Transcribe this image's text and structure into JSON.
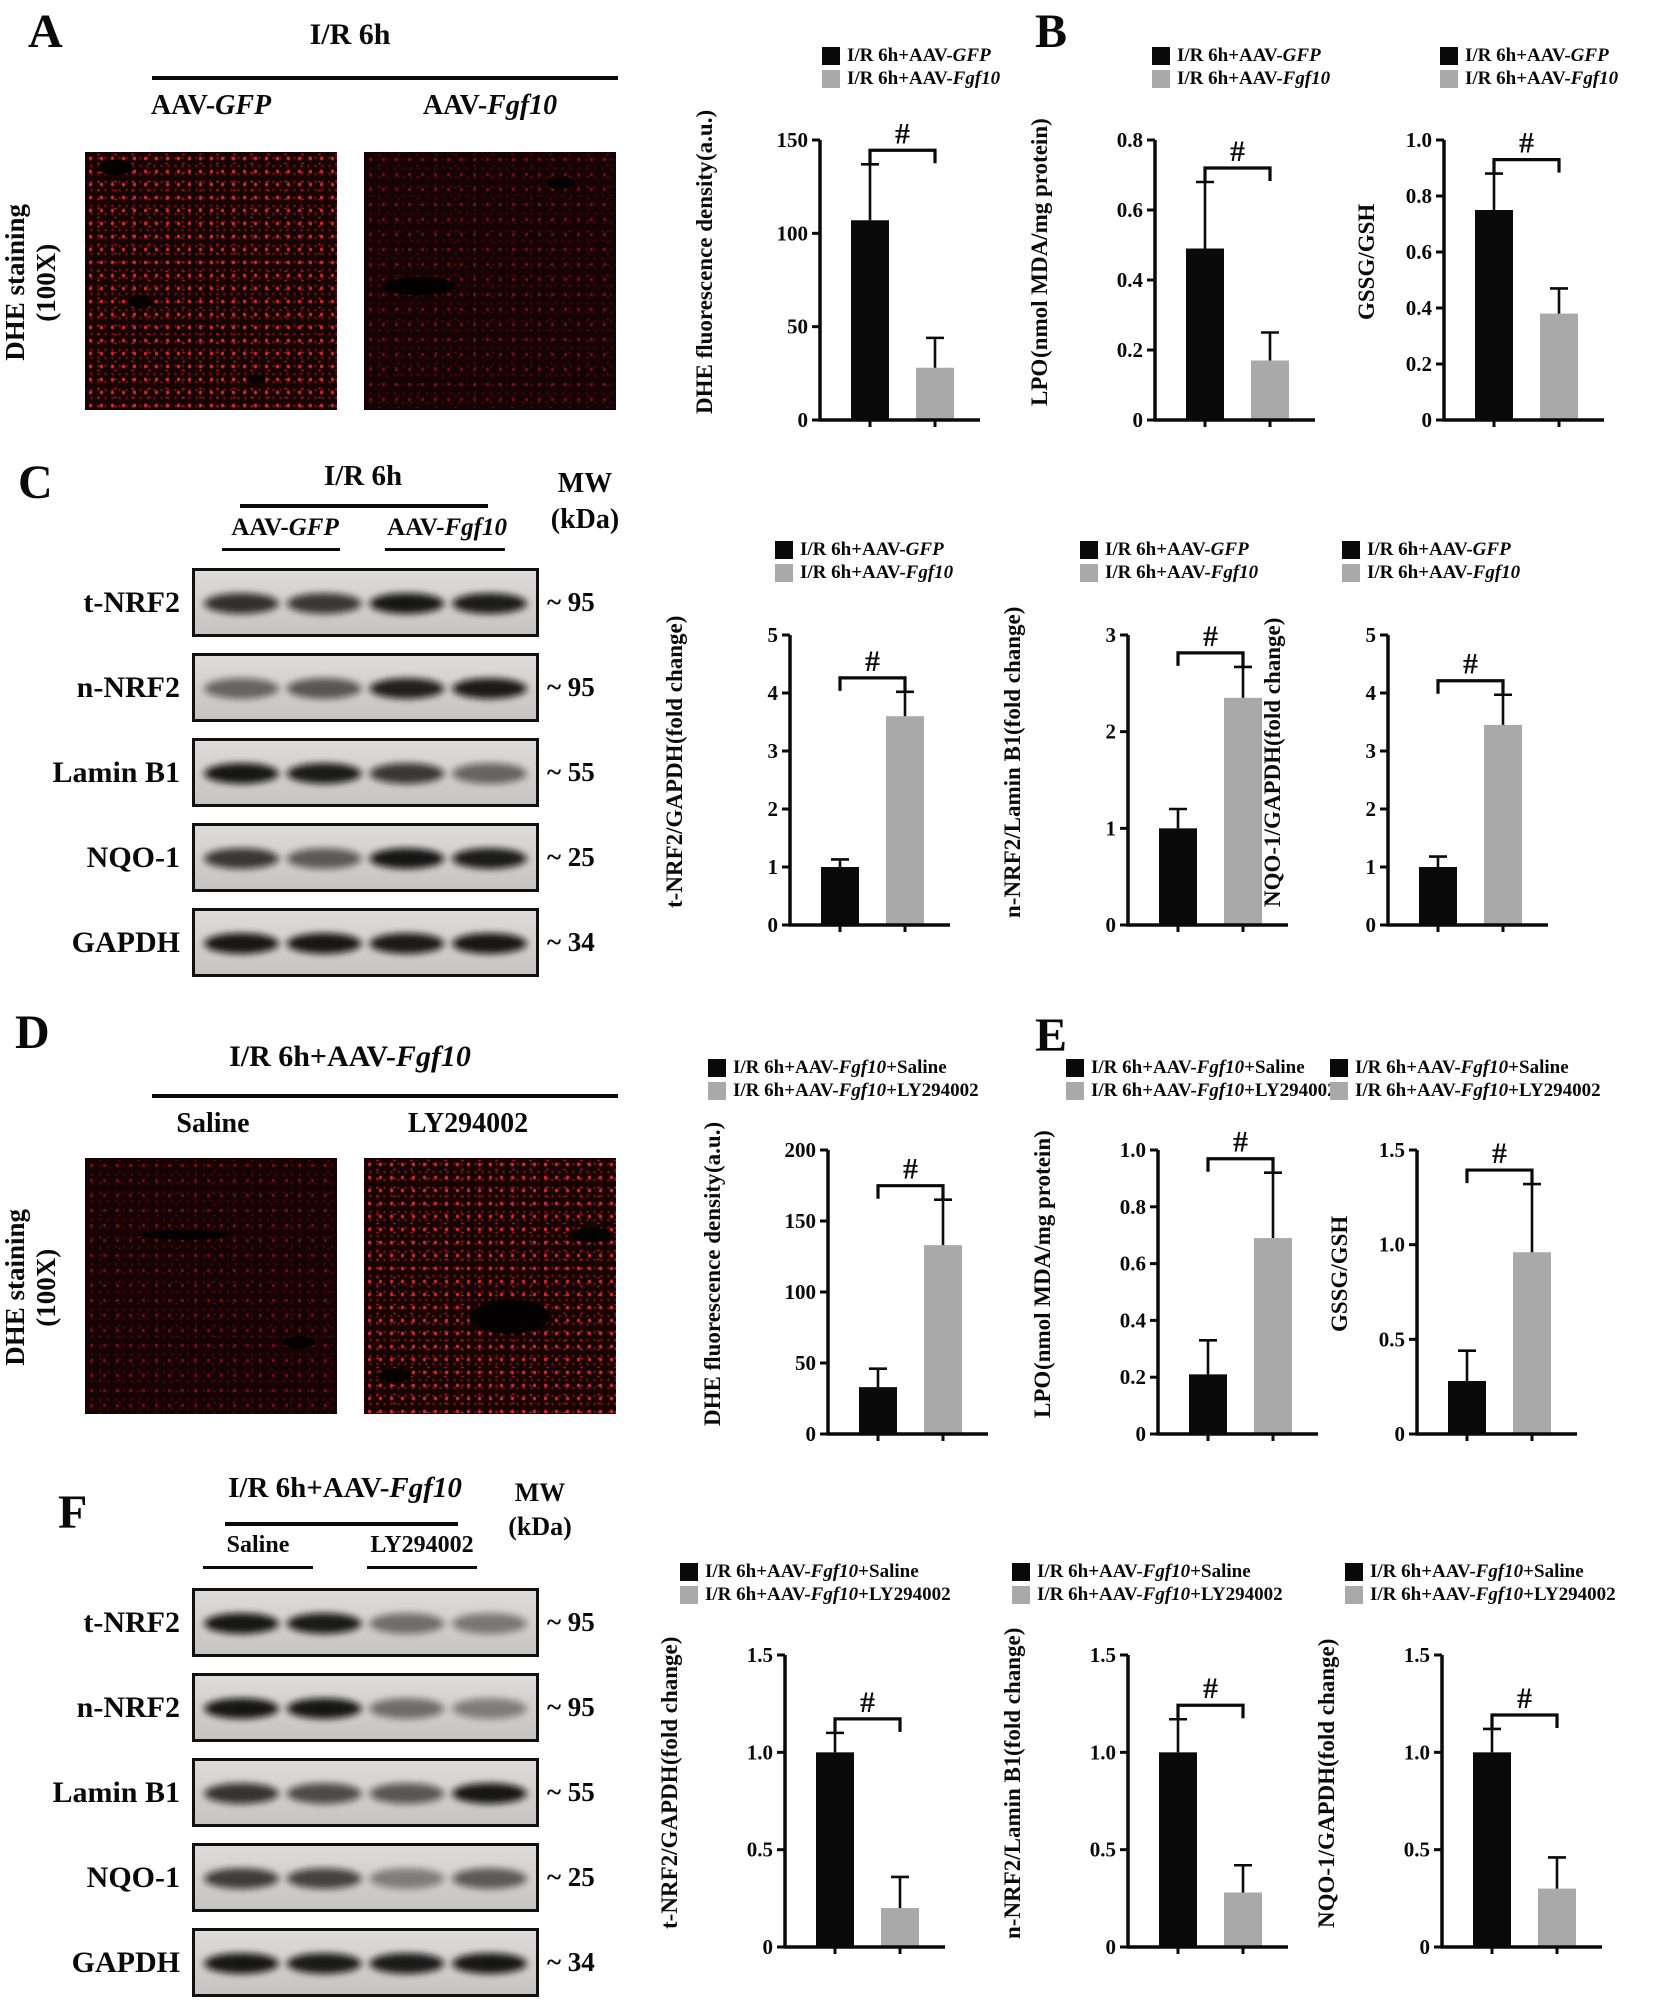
{
  "panel_letters": {
    "A": "A",
    "B": "B",
    "C": "C",
    "D": "D",
    "E": "E",
    "F": "F"
  },
  "side_labels": {
    "A": [
      "DHE staining",
      "(100X)"
    ],
    "D": [
      "DHE staining",
      "(100X)"
    ]
  },
  "headers": {
    "A": {
      "title": [
        {
          "t": "I/R 6h"
        }
      ],
      "cols": [
        [
          {
            "t": "AAV-"
          },
          {
            "t": "GFP",
            "i": true
          }
        ],
        [
          {
            "t": "AAV-"
          },
          {
            "t": "Fgf10",
            "i": true
          }
        ]
      ]
    },
    "C": {
      "title": [
        {
          "t": "I/R 6h"
        }
      ],
      "cols": [
        [
          {
            "t": "AAV-"
          },
          {
            "t": "GFP",
            "i": true
          }
        ],
        [
          {
            "t": "AAV-"
          },
          {
            "t": "Fgf10",
            "i": true
          }
        ]
      ]
    },
    "D": {
      "title": [
        {
          "t": "I/R 6h+AAV-"
        },
        {
          "t": "Fgf10",
          "i": true
        }
      ],
      "cols": [
        [
          {
            "t": "Saline"
          }
        ],
        [
          {
            "t": "LY294002"
          }
        ]
      ]
    },
    "F": {
      "title": [
        {
          "t": "I/R 6h+AAV-"
        },
        {
          "t": "Fgf10",
          "i": true
        }
      ],
      "cols": [
        [
          {
            "t": "Saline"
          }
        ],
        [
          {
            "t": "LY294002"
          }
        ]
      ]
    }
  },
  "mw_header": [
    "MW",
    "(kDa)"
  ],
  "colors": {
    "black_bar": "#0a0a0a",
    "gray_bar": "#a9a9a9",
    "dhe_red": "#b91c24"
  },
  "legends": {
    "ab": [
      {
        "color": "#0a0a0a",
        "segments": [
          {
            "t": "I/R 6h+AAV-"
          },
          {
            "t": "GFP",
            "i": true
          }
        ]
      },
      {
        "color": "#a9a9a9",
        "segments": [
          {
            "t": "I/R 6h+AAV-"
          },
          {
            "t": "Fgf10",
            "i": true
          }
        ]
      }
    ],
    "def": [
      {
        "color": "#0a0a0a",
        "segments": [
          {
            "t": "I/R 6h+AAV-"
          },
          {
            "t": "Fgf10",
            "i": true
          },
          {
            "t": "+Saline"
          }
        ]
      },
      {
        "color": "#a9a9a9",
        "segments": [
          {
            "t": "I/R 6h+AAV-"
          },
          {
            "t": "Fgf10",
            "i": true
          },
          {
            "t": "+LY294002"
          }
        ]
      }
    ]
  },
  "blots": {
    "C": {
      "rows": [
        {
          "protein": "t-NRF2",
          "mw": "~ 95",
          "bands": [
            0.82,
            0.78,
            0.95,
            0.92
          ]
        },
        {
          "protein": "n-NRF2",
          "mw": "~ 95",
          "bands": [
            0.55,
            0.62,
            0.9,
            0.93
          ]
        },
        {
          "protein": "Lamin B1",
          "mw": "~ 55",
          "bands": [
            0.95,
            0.93,
            0.78,
            0.55
          ]
        },
        {
          "protein": "NQO-1",
          "mw": "~ 25",
          "bands": [
            0.78,
            0.6,
            0.95,
            0.92
          ]
        },
        {
          "protein": "GAPDH",
          "mw": "~ 34",
          "bands": [
            0.95,
            0.95,
            0.93,
            0.95
          ]
        }
      ]
    },
    "F": {
      "rows": [
        {
          "protein": "t-NRF2",
          "mw": "~ 95",
          "bands": [
            0.95,
            0.93,
            0.5,
            0.45
          ]
        },
        {
          "protein": "n-NRF2",
          "mw": "~ 95",
          "bands": [
            0.95,
            0.95,
            0.5,
            0.42
          ]
        },
        {
          "protein": "Lamin B1",
          "mw": "~ 55",
          "bands": [
            0.8,
            0.68,
            0.62,
            0.95
          ]
        },
        {
          "protein": "NQO-1",
          "mw": "~ 25",
          "bands": [
            0.75,
            0.72,
            0.42,
            0.6
          ]
        },
        {
          "protein": "GAPDH",
          "mw": "~ 34",
          "bands": [
            0.95,
            0.93,
            0.93,
            0.95
          ]
        }
      ]
    }
  },
  "chart_data": [
    {
      "id": "A1",
      "type": "bar",
      "legend": "ab",
      "ylabel": [
        "DHE fluorescence density",
        "(a.u.)"
      ],
      "categories": [
        "I/R 6h+AAV-GFP",
        "I/R 6h+AAV-Fgf10"
      ],
      "values": [
        107,
        28
      ],
      "errors": [
        30,
        16
      ],
      "ylim": [
        0,
        150
      ],
      "yticks": [
        {
          "v": 0,
          "l": "0"
        },
        {
          "v": 50,
          "l": "50"
        },
        {
          "v": 100,
          "l": "100"
        },
        {
          "v": 150,
          "l": "150"
        }
      ],
      "sig": "#"
    },
    {
      "id": "B1",
      "type": "bar",
      "legend": "ab",
      "ylabel": [
        "LPO",
        "(nmol MDA/mg protein)"
      ],
      "categories": [
        "I/R 6h+AAV-GFP",
        "I/R 6h+AAV-Fgf10"
      ],
      "values": [
        0.49,
        0.17
      ],
      "errors": [
        0.19,
        0.08
      ],
      "ylim": [
        0,
        0.8
      ],
      "yticks": [
        {
          "v": 0,
          "l": "0"
        },
        {
          "v": 0.2,
          "l": "0.2"
        },
        {
          "v": 0.4,
          "l": "0.4"
        },
        {
          "v": 0.6,
          "l": "0.6"
        },
        {
          "v": 0.8,
          "l": "0.8"
        }
      ],
      "sig": "#"
    },
    {
      "id": "B2",
      "type": "bar",
      "legend": "ab",
      "ylabel": [
        "GSSG/GSH"
      ],
      "categories": [
        "I/R 6h+AAV-GFP",
        "I/R 6h+AAV-Fgf10"
      ],
      "values": [
        0.75,
        0.38
      ],
      "errors": [
        0.13,
        0.09
      ],
      "ylim": [
        0,
        1.0
      ],
      "yticks": [
        {
          "v": 0,
          "l": "0"
        },
        {
          "v": 0.2,
          "l": "0.2"
        },
        {
          "v": 0.4,
          "l": "0.4"
        },
        {
          "v": 0.6,
          "l": "0.6"
        },
        {
          "v": 0.8,
          "l": "0.8"
        },
        {
          "v": 1.0,
          "l": "1.0"
        }
      ],
      "sig": "#"
    },
    {
      "id": "C1",
      "type": "bar",
      "legend": "ab",
      "ylabel": [
        "t-NRF2/GAPDH",
        "(fold change)"
      ],
      "categories": [
        "I/R 6h+AAV-GFP",
        "I/R 6h+AAV-Fgf10"
      ],
      "values": [
        1.0,
        3.6
      ],
      "errors": [
        0.13,
        0.42
      ],
      "ylim": [
        0,
        5
      ],
      "yticks": [
        {
          "v": 0,
          "l": "0"
        },
        {
          "v": 1,
          "l": "1"
        },
        {
          "v": 2,
          "l": "2"
        },
        {
          "v": 3,
          "l": "3"
        },
        {
          "v": 4,
          "l": "4"
        },
        {
          "v": 5,
          "l": "5"
        }
      ],
      "sig": "#"
    },
    {
      "id": "C2",
      "type": "bar",
      "legend": "ab",
      "ylabel": [
        "n-NRF2/Lamin B1",
        "(fold change)"
      ],
      "categories": [
        "I/R 6h+AAV-GFP",
        "I/R 6h+AAV-Fgf10"
      ],
      "values": [
        1.0,
        2.35
      ],
      "errors": [
        0.2,
        0.32
      ],
      "ylim": [
        0,
        3
      ],
      "yticks": [
        {
          "v": 0,
          "l": "0"
        },
        {
          "v": 1,
          "l": "1"
        },
        {
          "v": 2,
          "l": "2"
        },
        {
          "v": 3,
          "l": "3"
        }
      ],
      "sig": "#"
    },
    {
      "id": "C3",
      "type": "bar",
      "legend": "ab",
      "ylabel": [
        "NQO-1/GAPDH",
        "(fold change)"
      ],
      "categories": [
        "I/R 6h+AAV-GFP",
        "I/R 6h+AAV-Fgf10"
      ],
      "values": [
        1.0,
        3.45
      ],
      "errors": [
        0.18,
        0.52
      ],
      "ylim": [
        0,
        5
      ],
      "yticks": [
        {
          "v": 0,
          "l": "0"
        },
        {
          "v": 1,
          "l": "1"
        },
        {
          "v": 2,
          "l": "2"
        },
        {
          "v": 3,
          "l": "3"
        },
        {
          "v": 4,
          "l": "4"
        },
        {
          "v": 5,
          "l": "5"
        }
      ],
      "sig": "#"
    },
    {
      "id": "D1",
      "type": "bar",
      "legend": "def",
      "ylabel": [
        "DHE fluorescence density",
        "(a.u.)"
      ],
      "categories": [
        "I/R 6h+AAV-Fgf10+Saline",
        "I/R 6h+AAV-Fgf10+LY294002"
      ],
      "values": [
        33,
        133
      ],
      "errors": [
        13,
        32
      ],
      "ylim": [
        0,
        200
      ],
      "yticks": [
        {
          "v": 0,
          "l": "0"
        },
        {
          "v": 50,
          "l": "50"
        },
        {
          "v": 100,
          "l": "100"
        },
        {
          "v": 150,
          "l": "150"
        },
        {
          "v": 200,
          "l": "200"
        }
      ],
      "sig": "#"
    },
    {
      "id": "E1",
      "type": "bar",
      "legend": "def",
      "ylabel": [
        "LPO",
        "(nmol MDA/mg protein)"
      ],
      "categories": [
        "I/R 6h+AAV-Fgf10+Saline",
        "I/R 6h+AAV-Fgf10+LY294002"
      ],
      "values": [
        0.21,
        0.69
      ],
      "errors": [
        0.12,
        0.23
      ],
      "ylim": [
        0,
        1.0
      ],
      "yticks": [
        {
          "v": 0,
          "l": "0"
        },
        {
          "v": 0.2,
          "l": "0.2"
        },
        {
          "v": 0.4,
          "l": "0.4"
        },
        {
          "v": 0.6,
          "l": "0.6"
        },
        {
          "v": 0.8,
          "l": "0.8"
        },
        {
          "v": 1.0,
          "l": "1.0"
        }
      ],
      "sig": "#"
    },
    {
      "id": "E2",
      "type": "bar",
      "legend": "def",
      "ylabel": [
        "GSSG/GSH"
      ],
      "categories": [
        "I/R 6h+AAV-Fgf10+Saline",
        "I/R 6h+AAV-Fgf10+LY294002"
      ],
      "values": [
        0.28,
        0.96
      ],
      "errors": [
        0.16,
        0.36
      ],
      "ylim": [
        0,
        1.5
      ],
      "yticks": [
        {
          "v": 0,
          "l": "0"
        },
        {
          "v": 0.5,
          "l": "0.5"
        },
        {
          "v": 1.0,
          "l": "1.0"
        },
        {
          "v": 1.5,
          "l": "1.5"
        }
      ],
      "sig": "#"
    },
    {
      "id": "F1",
      "type": "bar",
      "legend": "def",
      "ylabel": [
        "t-NRF2/GAPDH",
        "(fold change)"
      ],
      "categories": [
        "I/R 6h+AAV-Fgf10+Saline",
        "I/R 6h+AAV-Fgf10+LY294002"
      ],
      "values": [
        1.0,
        0.2
      ],
      "errors": [
        0.1,
        0.16
      ],
      "ylim": [
        0,
        1.5
      ],
      "yticks": [
        {
          "v": 0,
          "l": "0"
        },
        {
          "v": 0.5,
          "l": "0.5"
        },
        {
          "v": 1.0,
          "l": "1.0"
        },
        {
          "v": 1.5,
          "l": "1.5"
        }
      ],
      "sig": "#"
    },
    {
      "id": "F2",
      "type": "bar",
      "legend": "def",
      "ylabel": [
        "n-NRF2/Lamin B1",
        "(fold change)"
      ],
      "categories": [
        "I/R 6h+AAV-Fgf10+Saline",
        "I/R 6h+AAV-Fgf10+LY294002"
      ],
      "values": [
        1.0,
        0.28
      ],
      "errors": [
        0.17,
        0.14
      ],
      "ylim": [
        0,
        1.5
      ],
      "yticks": [
        {
          "v": 0,
          "l": "0"
        },
        {
          "v": 0.5,
          "l": "0.5"
        },
        {
          "v": 1.0,
          "l": "1.0"
        },
        {
          "v": 1.5,
          "l": "1.5"
        }
      ],
      "sig": "#"
    },
    {
      "id": "F3",
      "type": "bar",
      "legend": "def",
      "ylabel": [
        "NQO-1/GAPDH",
        "(fold change)"
      ],
      "categories": [
        "I/R 6h+AAV-Fgf10+Saline",
        "I/R 6h+AAV-Fgf10+LY294002"
      ],
      "values": [
        1.0,
        0.3
      ],
      "errors": [
        0.12,
        0.16
      ],
      "ylim": [
        0,
        1.5
      ],
      "yticks": [
        {
          "v": 0,
          "l": "0"
        },
        {
          "v": 0.5,
          "l": "0.5"
        },
        {
          "v": 1.0,
          "l": "1.0"
        },
        {
          "v": 1.5,
          "l": "1.5"
        }
      ],
      "sig": "#"
    }
  ]
}
